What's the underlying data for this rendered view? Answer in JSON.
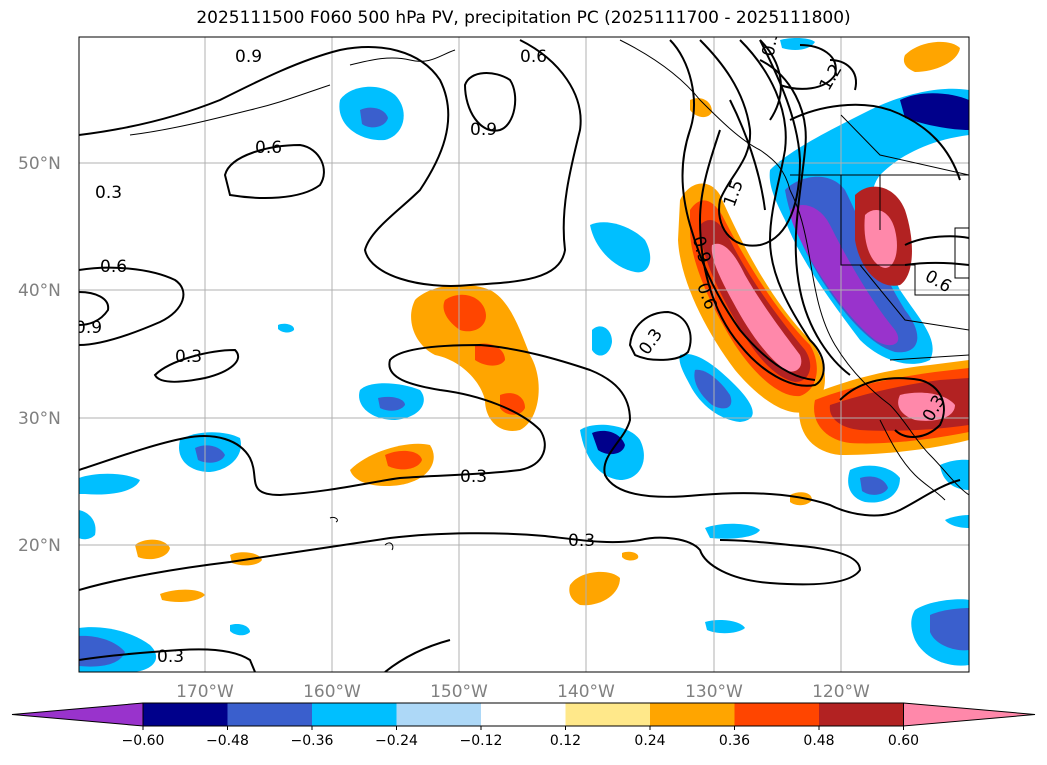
{
  "title": "2025111500 F060 500 hPa PV, precipitation PC (2025111700 - 2025111800)",
  "lat_labels": [
    "50°N",
    "40°N",
    "30°N",
    "20°N"
  ],
  "lon_labels": [
    "170°W",
    "160°W",
    "150°W",
    "140°W",
    "130°W",
    "120°W"
  ],
  "contour_labels": [
    "0.9",
    "0.6",
    "0.9",
    "0.6",
    "0.3",
    "0.6",
    "0.9",
    "0.3",
    "0.3",
    "0.3",
    "0.3",
    "0.3",
    "1.5",
    "1.2",
    "0.9",
    "0.6",
    "0.6",
    "0.3",
    "0.3"
  ],
  "colorbar": {
    "ticks": [
      "−0.60",
      "−0.48",
      "−0.36",
      "−0.24",
      "−0.12",
      "0.12",
      "0.24",
      "0.36",
      "0.48",
      "0.60"
    ],
    "colors": [
      "#9933cc",
      "#00008b",
      "#3a5fcd",
      "#00bfff",
      "#add8f7",
      "#ffffff",
      "#ffe88a",
      "#ffa500",
      "#ff4500",
      "#b22222",
      "#ff88aa"
    ]
  }
}
